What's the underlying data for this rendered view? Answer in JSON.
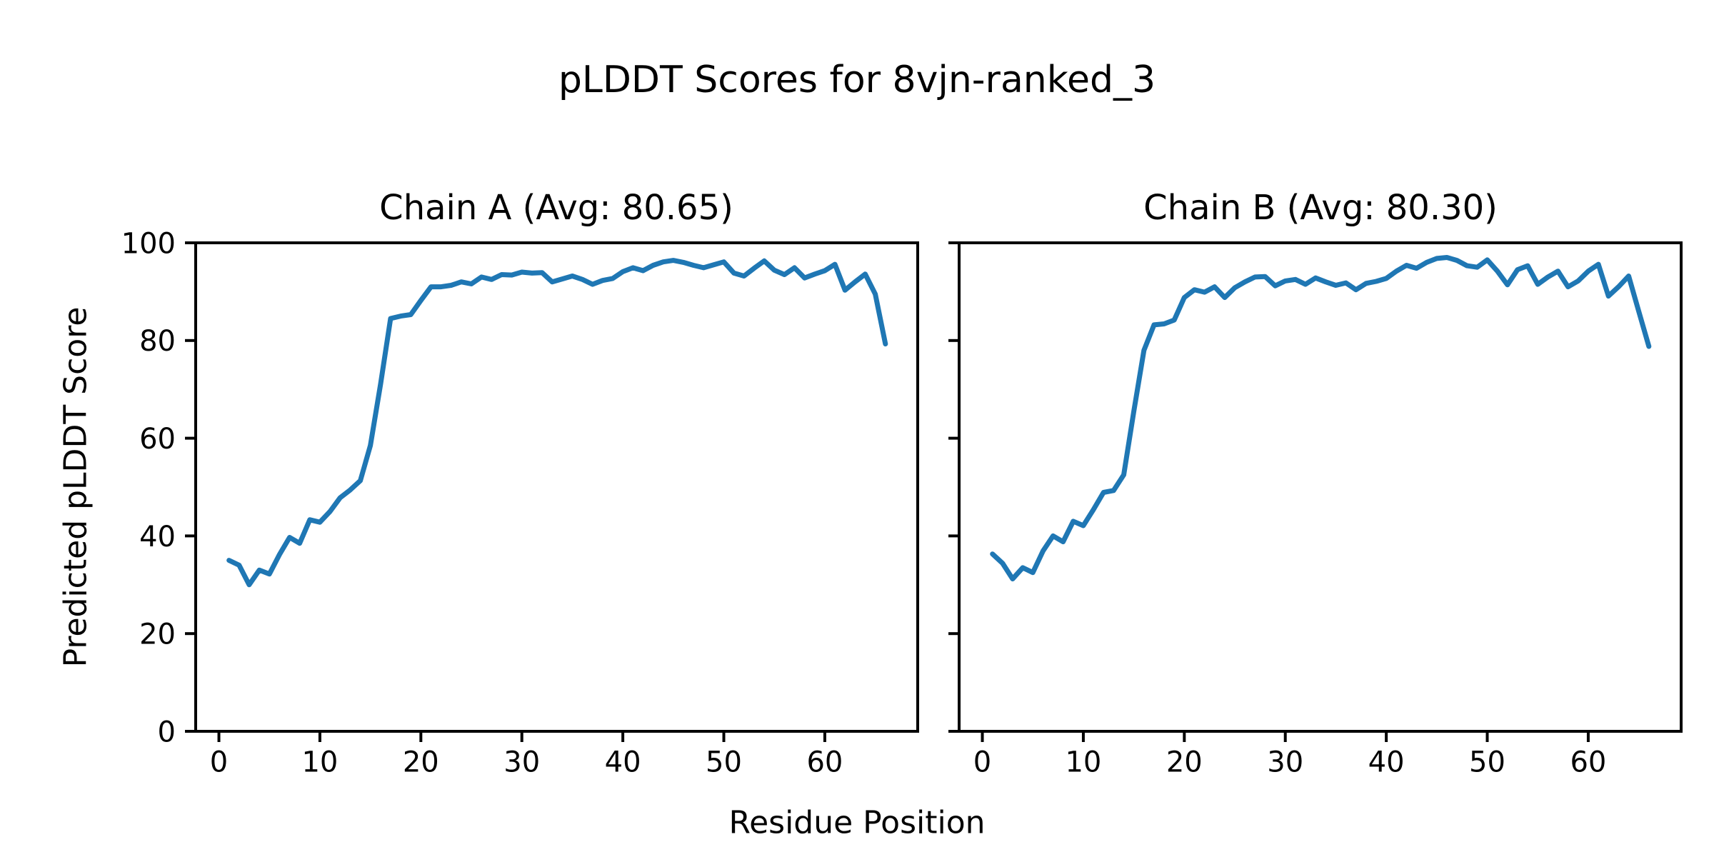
{
  "figure": {
    "suptitle": "pLDDT Scores for 8vjn-ranked_3",
    "xlabel": "Residue Position",
    "ylabel": "Predicted pLDDT Score"
  },
  "colors": {
    "line": "#1f77b4",
    "axis": "#000000",
    "background": "#ffffff"
  },
  "chart_data": [
    {
      "type": "line",
      "title": "Chain A (Avg: 80.65)",
      "avg_label": "80.65",
      "xlabel": "Residue Position",
      "ylabel": "Predicted pLDDT Score",
      "xlim": [
        -2.3,
        69.2
      ],
      "ylim": [
        0,
        100
      ],
      "xticks": [
        0,
        10,
        20,
        30,
        40,
        50,
        60
      ],
      "yticks": [
        0,
        20,
        40,
        60,
        80,
        100
      ],
      "grid": false,
      "legend": "none",
      "x_start": 1,
      "x_step": 1,
      "series": [
        {
          "name": "Chain A pLDDT",
          "values": [
            35.0,
            34.0,
            30.0,
            33.0,
            32.2,
            36.2,
            39.7,
            38.5,
            43.3,
            42.8,
            45.0,
            47.8,
            49.4,
            51.3,
            58.5,
            71.0,
            84.5,
            85.0,
            85.3,
            88.2,
            91.0,
            91.0,
            91.3,
            92.0,
            91.6,
            93.0,
            92.5,
            93.5,
            93.4,
            94.0,
            93.8,
            93.9,
            92.0,
            92.6,
            93.2,
            92.5,
            91.5,
            92.3,
            92.7,
            94.1,
            94.9,
            94.3,
            95.4,
            96.1,
            96.4,
            96.0,
            95.4,
            94.9,
            95.5,
            96.1,
            93.8,
            93.2,
            94.8,
            96.3,
            94.4,
            93.5,
            94.9,
            92.8,
            93.6,
            94.3,
            95.6,
            90.3,
            92.0,
            93.6,
            89.5,
            79.3
          ]
        }
      ]
    },
    {
      "type": "line",
      "title": "Chain B (Avg: 80.30)",
      "avg_label": "80.30",
      "xlabel": "Residue Position",
      "ylabel": "Predicted pLDDT Score",
      "xlim": [
        -2.3,
        69.2
      ],
      "ylim": [
        0,
        100
      ],
      "xticks": [
        0,
        10,
        20,
        30,
        40,
        50,
        60
      ],
      "yticks": [
        0,
        20,
        40,
        60,
        80,
        100
      ],
      "grid": false,
      "legend": "none",
      "x_start": 1,
      "x_step": 1,
      "series": [
        {
          "name": "Chain B pLDDT",
          "values": [
            36.3,
            34.4,
            31.2,
            33.5,
            32.5,
            36.9,
            40.0,
            38.8,
            43.0,
            42.1,
            45.4,
            48.9,
            49.3,
            52.5,
            65.5,
            78.0,
            83.2,
            83.4,
            84.2,
            88.8,
            90.4,
            89.9,
            91.0,
            88.8,
            90.8,
            92.0,
            93.0,
            93.1,
            91.2,
            92.2,
            92.5,
            91.5,
            92.8,
            92.0,
            91.3,
            91.8,
            90.4,
            91.7,
            92.1,
            92.7,
            94.2,
            95.4,
            94.8,
            96.0,
            96.8,
            97.0,
            96.4,
            95.3,
            95.0,
            96.5,
            94.2,
            91.4,
            94.5,
            95.3,
            91.5,
            93.0,
            94.2,
            91.0,
            92.2,
            94.2,
            95.6,
            89.1,
            91.0,
            93.2,
            86.0,
            78.8
          ]
        }
      ]
    }
  ]
}
